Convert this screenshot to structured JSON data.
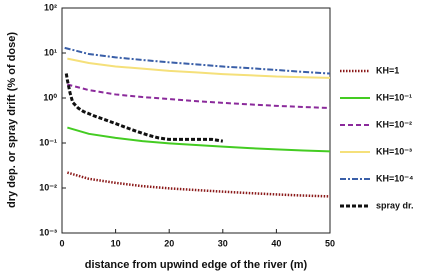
{
  "chart_data": {
    "type": "line",
    "xlabel": "distance from upwind edge of the river (m)",
    "ylabel": "dry dep. or spray drift (% of dose)",
    "xlim": [
      0,
      50
    ],
    "xticks": [
      0,
      10,
      20,
      30,
      40,
      50
    ],
    "ylim": [
      0.001,
      100
    ],
    "log_y": true,
    "yticks": [
      {
        "value": 0.001,
        "label": "10⁻³"
      },
      {
        "value": 0.01,
        "label": "10⁻²"
      },
      {
        "value": 0.1,
        "label": "10⁻¹"
      },
      {
        "value": 1,
        "label": "10⁰"
      },
      {
        "value": 10,
        "label": "10¹"
      },
      {
        "value": 100,
        "label": "10²"
      }
    ],
    "series": [
      {
        "name": "KH=1",
        "color": "#8b1a1a",
        "line_style": "dotted",
        "x": [
          1,
          5,
          10,
          15,
          20,
          25,
          30,
          35,
          40,
          45,
          50
        ],
        "values": [
          0.022,
          0.016,
          0.013,
          0.011,
          0.0098,
          0.009,
          0.0083,
          0.0077,
          0.0072,
          0.0068,
          0.0065
        ]
      },
      {
        "name": "KH=10⁻¹",
        "color": "#44cc22",
        "line_style": "solid",
        "x": [
          1,
          5,
          10,
          15,
          20,
          25,
          30,
          35,
          40,
          45,
          50
        ],
        "values": [
          0.22,
          0.16,
          0.13,
          0.11,
          0.098,
          0.09,
          0.083,
          0.077,
          0.072,
          0.068,
          0.065
        ]
      },
      {
        "name": "KH=10⁻²",
        "color": "#8b2a9b",
        "line_style": "dashed",
        "x": [
          1,
          5,
          10,
          15,
          20,
          25,
          30,
          35,
          40,
          45,
          50
        ],
        "values": [
          2,
          1.5,
          1.2,
          1.05,
          0.95,
          0.85,
          0.78,
          0.72,
          0.67,
          0.63,
          0.6
        ]
      },
      {
        "name": "KH=10⁻³",
        "color": "#f5e07a",
        "line_style": "solid",
        "x": [
          1,
          5,
          10,
          15,
          20,
          25,
          30,
          35,
          40,
          45,
          50
        ],
        "values": [
          7.5,
          6,
          5,
          4.5,
          4,
          3.7,
          3.4,
          3.2,
          3,
          2.9,
          2.8
        ]
      },
      {
        "name": "KH=10⁻⁴",
        "color": "#3a5fa8",
        "line_style": "dashdot",
        "x": [
          0.5,
          5,
          10,
          15,
          20,
          25,
          30,
          35,
          40,
          45,
          50
        ],
        "values": [
          13,
          9.5,
          8,
          7,
          6.2,
          5.6,
          5,
          4.6,
          4.2,
          3.8,
          3.5
        ]
      },
      {
        "name": "spray dr.",
        "color": "#111111",
        "line_style": "thickdash",
        "x": [
          0.8,
          1,
          1.5,
          2,
          3,
          4,
          5,
          6,
          8,
          10,
          12,
          14,
          16,
          18,
          20,
          22,
          25,
          28,
          30
        ],
        "values": [
          3.5,
          2.5,
          1.3,
          0.8,
          0.6,
          0.5,
          0.45,
          0.4,
          0.33,
          0.27,
          0.22,
          0.18,
          0.15,
          0.13,
          0.12,
          0.12,
          0.12,
          0.12,
          0.11
        ]
      }
    ]
  }
}
